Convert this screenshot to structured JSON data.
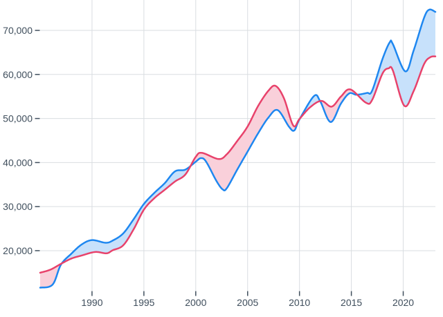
{
  "chart_data": {
    "type": "area",
    "title": "",
    "subtitle": "",
    "legend": "none",
    "grid": true,
    "x_ticks": [
      1990,
      1995,
      2000,
      2005,
      2010,
      2015,
      2020
    ],
    "y_ticks": [
      20000,
      30000,
      40000,
      50000,
      60000,
      70000
    ],
    "xlim": [
      1985,
      2023.1
    ],
    "ylim": [
      10900,
      76900
    ],
    "colors": {
      "background": "#ffffff",
      "gridline": "#d9dde1",
      "tick": "#3f4e5c",
      "label": "#3f4e5c"
    },
    "series": [
      {
        "id": "blue",
        "color": "#1e87f0",
        "fill_when_above": "#c7e1fb",
        "points": [
          [
            1985,
            11600
          ],
          [
            1986.2,
            12300
          ],
          [
            1987,
            16800
          ],
          [
            1988,
            19300
          ],
          [
            1989,
            21400
          ],
          [
            1990,
            22400
          ],
          [
            1991.3,
            21800
          ],
          [
            1992,
            22300
          ],
          [
            1993,
            23900
          ],
          [
            1994,
            27100
          ],
          [
            1995,
            30600
          ],
          [
            1996,
            33100
          ],
          [
            1997,
            35300
          ],
          [
            1998,
            38000
          ],
          [
            1999,
            38400
          ],
          [
            2000,
            40200
          ],
          [
            2000.5,
            41000
          ],
          [
            2001,
            40200
          ],
          [
            2002,
            35800
          ],
          [
            2002.6,
            33900
          ],
          [
            2003,
            34200
          ],
          [
            2004,
            38400
          ],
          [
            2005,
            42500
          ],
          [
            2006,
            46600
          ],
          [
            2007,
            50200
          ],
          [
            2007.9,
            51900
          ],
          [
            2009,
            48100
          ],
          [
            2009.5,
            47300
          ],
          [
            2010,
            49800
          ],
          [
            2011.4,
            55100
          ],
          [
            2012,
            53900
          ],
          [
            2013,
            49200
          ],
          [
            2014,
            53400
          ],
          [
            2014.8,
            55700
          ],
          [
            2015.5,
            55400
          ],
          [
            2016.5,
            55800
          ],
          [
            2017,
            56300
          ],
          [
            2018,
            63500
          ],
          [
            2018.7,
            67300
          ],
          [
            2019,
            66900
          ],
          [
            2020.2,
            60700
          ],
          [
            2021,
            65400
          ],
          [
            2022,
            72800
          ],
          [
            2022.5,
            74700
          ],
          [
            2023.1,
            74200
          ]
        ]
      },
      {
        "id": "red",
        "color": "#e8426b",
        "fill_when_above": "#f9d0da",
        "points": [
          [
            1985,
            15000
          ],
          [
            1986,
            15700
          ],
          [
            1987,
            17000
          ],
          [
            1988,
            18200
          ],
          [
            1989,
            18900
          ],
          [
            1990.3,
            19700
          ],
          [
            1991.4,
            19400
          ],
          [
            1992,
            20100
          ],
          [
            1993,
            21200
          ],
          [
            1994,
            24800
          ],
          [
            1995,
            29300
          ],
          [
            1996,
            31900
          ],
          [
            1997,
            33800
          ],
          [
            1998,
            35700
          ],
          [
            1999,
            37300
          ],
          [
            2000,
            41300
          ],
          [
            2000.6,
            42200
          ],
          [
            2002.2,
            40800
          ],
          [
            2003,
            41900
          ],
          [
            2004,
            44900
          ],
          [
            2005,
            48200
          ],
          [
            2006,
            52800
          ],
          [
            2007,
            56300
          ],
          [
            2007.7,
            57400
          ],
          [
            2008.5,
            54600
          ],
          [
            2009.4,
            48400
          ],
          [
            2010,
            49900
          ],
          [
            2011,
            52500
          ],
          [
            2012.1,
            54000
          ],
          [
            2013.1,
            52700
          ],
          [
            2014,
            55000
          ],
          [
            2014.9,
            56600
          ],
          [
            2016.4,
            53600
          ],
          [
            2017,
            54200
          ],
          [
            2018,
            60200
          ],
          [
            2018.6,
            61400
          ],
          [
            2019,
            60900
          ],
          [
            2020.1,
            52900
          ],
          [
            2021,
            56200
          ],
          [
            2022,
            62300
          ],
          [
            2022.6,
            63900
          ],
          [
            2023.1,
            64100
          ]
        ]
      }
    ]
  }
}
